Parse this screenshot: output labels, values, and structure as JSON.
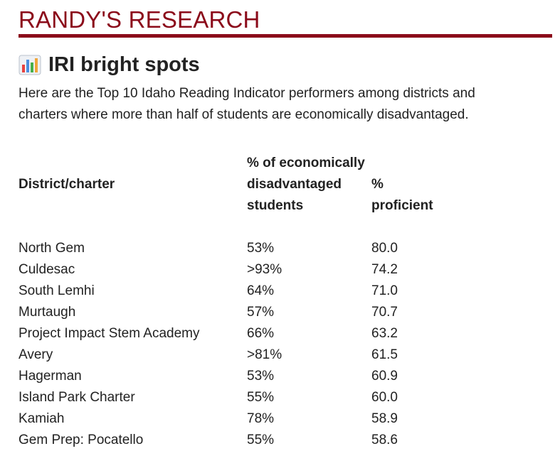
{
  "site": {
    "title": "RANDY'S RESEARCH",
    "brand_color": "#8b0a1a"
  },
  "article": {
    "icon": "bar-chart-icon",
    "heading": "IRI bright spots",
    "intro": "Here are the Top 10 Idaho Reading Indicator performers among districts and charters where more than half of students are economically disadvantaged."
  },
  "table": {
    "headers": {
      "district": "District/charter",
      "disadvantaged_line1": "% of economically",
      "disadvantaged_line2": "disadvantaged",
      "disadvantaged_line3": "students",
      "proficient_line1": "%",
      "proficient_line2": "proficient"
    },
    "rows": [
      {
        "district": "North Gem",
        "disadvantaged": "53%",
        "proficient": "80.0"
      },
      {
        "district": "Culdesac",
        "disadvantaged": ">93%",
        "proficient": "74.2"
      },
      {
        "district": "South Lemhi",
        "disadvantaged": "64%",
        "proficient": "71.0"
      },
      {
        "district": "Murtaugh",
        "disadvantaged": "57%",
        "proficient": "70.7"
      },
      {
        "district": "Project Impact Stem Academy",
        "disadvantaged": "66%",
        "proficient": "63.2"
      },
      {
        "district": "Avery",
        "disadvantaged": ">81%",
        "proficient": "61.5"
      },
      {
        "district": "Hagerman",
        "disadvantaged": "53%",
        "proficient": "60.9"
      },
      {
        "district": "Island Park Charter",
        "disadvantaged": "55%",
        "proficient": "60.0"
      },
      {
        "district": "Kamiah",
        "disadvantaged": "78%",
        "proficient": "58.9"
      },
      {
        "district": "Gem Prep: Pocatello",
        "disadvantaged": "55%",
        "proficient": "58.6"
      }
    ]
  }
}
